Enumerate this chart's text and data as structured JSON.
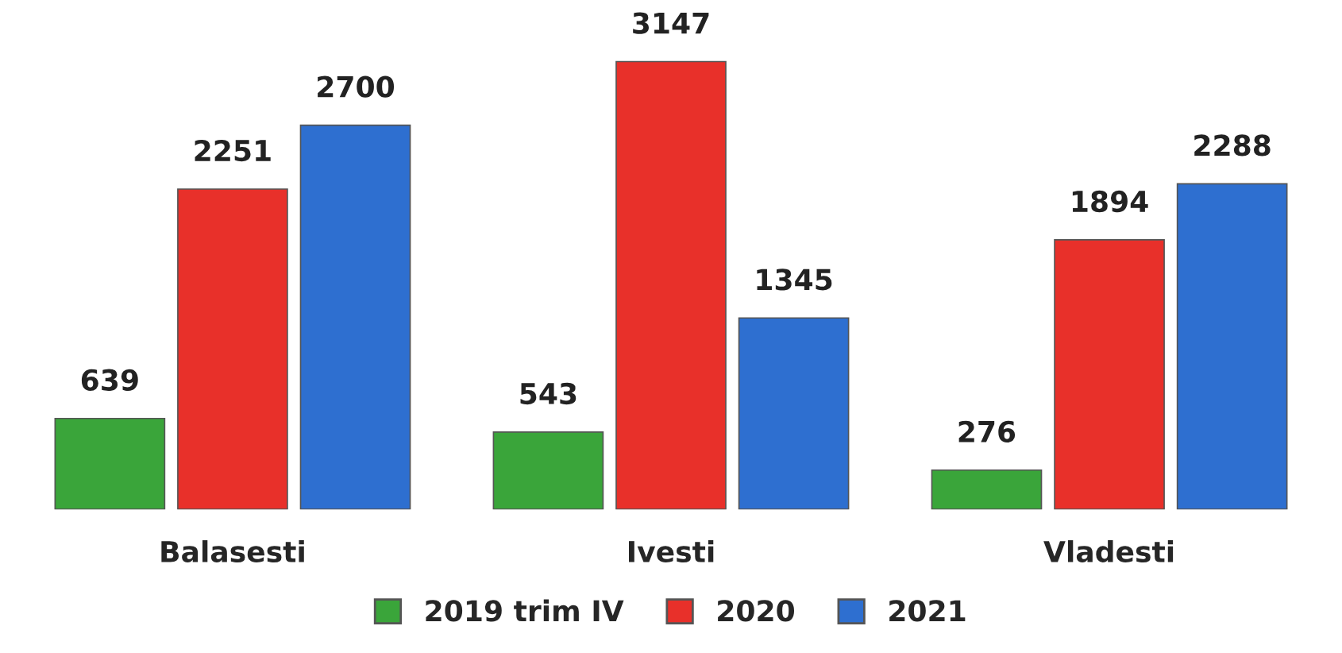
{
  "chart_data": {
    "type": "bar",
    "categories": [
      "Balasesti",
      "Ivesti",
      "Vladesti"
    ],
    "series": [
      {
        "name": "2019 trim IV",
        "color": "#3aa53a",
        "values": [
          639,
          543,
          276
        ]
      },
      {
        "name": "2020",
        "color": "#e8302a",
        "values": [
          2251,
          3147,
          1894
        ]
      },
      {
        "name": "2021",
        "color": "#2e6fd0",
        "values": [
          2700,
          1345,
          2288
        ]
      }
    ],
    "data_labels": true,
    "legend": "bottom",
    "grid": false
  }
}
